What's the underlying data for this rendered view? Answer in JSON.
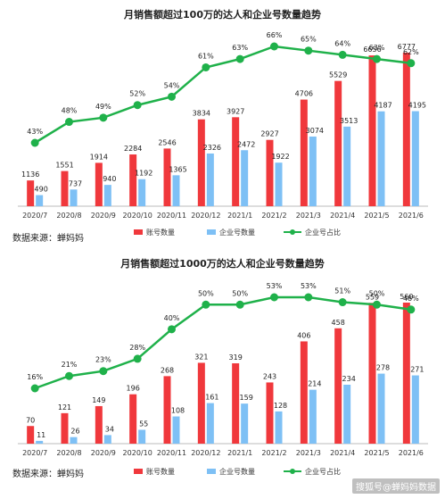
{
  "chart_data": [
    {
      "type": "bar",
      "title": "月销售额超过100万的达人和企业号数量趋势",
      "categories": [
        "2020/7",
        "2020/8",
        "2020/9",
        "2020/10",
        "2020/11",
        "2020/12",
        "2021/1",
        "2021/2",
        "2021/3",
        "2021/4",
        "2021/5",
        "2021/6"
      ],
      "series": [
        {
          "name": "账号数量",
          "type": "bar",
          "color": "#f0383c",
          "values": [
            1136,
            1551,
            1914,
            2284,
            2546,
            3834,
            3927,
            2927,
            4706,
            5529,
            6656,
            6777
          ]
        },
        {
          "name": "企业号数量",
          "type": "bar",
          "color": "#7ec0f5",
          "values": [
            490,
            737,
            940,
            1192,
            1365,
            2326,
            2472,
            1922,
            3074,
            3513,
            4187,
            4195
          ]
        },
        {
          "name": "企业号占比",
          "type": "line",
          "color": "#1fb14a",
          "values": [
            43,
            48,
            49,
            52,
            54,
            61,
            63,
            66,
            65,
            64,
            63,
            62
          ],
          "labels": [
            "43%",
            "48%",
            "49%",
            "52%",
            "54%",
            "61%",
            "63%",
            "66%",
            "65%",
            "64%",
            "63%",
            "62%"
          ]
        }
      ],
      "legend": "bottom",
      "source": "数据来源：蝉妈妈",
      "grid": false
    },
    {
      "type": "bar",
      "title": "月销售额超过1000万的达人和企业号数量趋势",
      "categories": [
        "2020/7",
        "2020/8",
        "2020/9",
        "2020/10",
        "2020/11",
        "2020/12",
        "2021/1",
        "2021/2",
        "2021/3",
        "2021/4",
        "2021/5",
        "2021/6"
      ],
      "series": [
        {
          "name": "账号数量",
          "type": "bar",
          "color": "#f0383c",
          "values": [
            70,
            121,
            149,
            196,
            268,
            321,
            319,
            243,
            406,
            458,
            559,
            560
          ]
        },
        {
          "name": "企业号数量",
          "type": "bar",
          "color": "#7ec0f5",
          "values": [
            11,
            26,
            34,
            55,
            108,
            161,
            159,
            128,
            214,
            234,
            278,
            271
          ]
        },
        {
          "name": "企业号占比",
          "type": "line",
          "color": "#1fb14a",
          "values": [
            16,
            21,
            23,
            28,
            40,
            50,
            50,
            53,
            53,
            51,
            50,
            48
          ],
          "labels": [
            "16%",
            "21%",
            "23%",
            "28%",
            "40%",
            "50%",
            "50%",
            "53%",
            "53%",
            "51%",
            "50%",
            "48%"
          ]
        }
      ],
      "legend": "bottom",
      "source": "数据来源：蝉妈妈",
      "grid": false
    }
  ],
  "watermark": "搜狐号@蝉妈妈数据"
}
